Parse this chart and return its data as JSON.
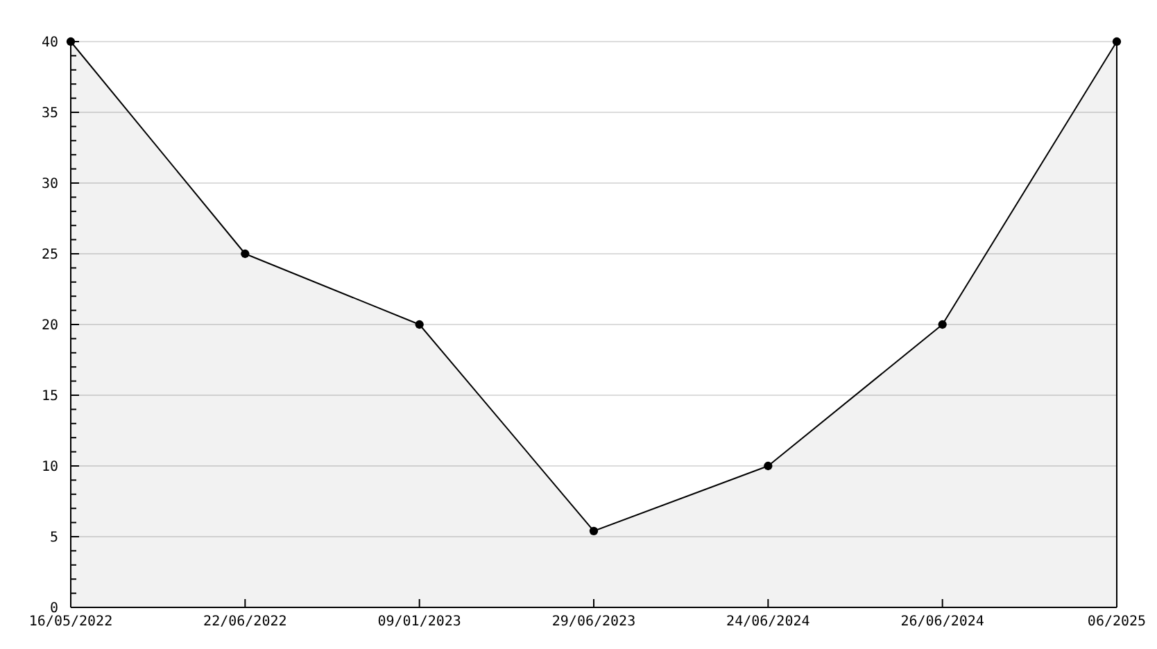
{
  "chart_data": {
    "type": "area",
    "categories": [
      "16/05/2022",
      "22/06/2022",
      "09/01/2023",
      "29/06/2023",
      "24/06/2024",
      "26/06/2024",
      "06/2025"
    ],
    "series": [
      {
        "color": "#000000",
        "values": [
          40,
          25,
          20,
          5.4,
          10,
          20,
          40
        ]
      }
    ],
    "ylim": [
      0,
      40
    ],
    "yticks": [
      0,
      {
        "value": 1,
        "label": null
      },
      {
        "value": 2,
        "label": null
      },
      {
        "value": 3,
        "label": null
      },
      {
        "value": 4,
        "label": null
      },
      5,
      {
        "value": 6,
        "label": null
      },
      {
        "value": 7,
        "label": null
      },
      {
        "value": 8,
        "label": null
      },
      {
        "value": 9,
        "label": null
      },
      10,
      {
        "value": 11,
        "label": null
      },
      {
        "value": 12,
        "label": null
      },
      {
        "value": 13,
        "label": null
      },
      {
        "value": 14,
        "label": null
      },
      15,
      {
        "value": 16,
        "label": null
      },
      {
        "value": 17,
        "label": null
      },
      {
        "value": 18,
        "label": null
      },
      {
        "value": 19,
        "label": null
      },
      20,
      {
        "value": 21,
        "label": null
      },
      {
        "value": 22,
        "label": null
      },
      {
        "value": 23,
        "label": null
      },
      {
        "value": 24,
        "label": null
      },
      25,
      {
        "value": 26,
        "label": null
      },
      {
        "value": 27,
        "label": null
      },
      {
        "value": 28,
        "label": null
      },
      {
        "value": 29,
        "label": null
      },
      30,
      {
        "value": 31,
        "label": null
      },
      {
        "value": 32,
        "label": null
      },
      {
        "value": 33,
        "label": null
      },
      {
        "value": 34,
        "label": null
      },
      35,
      {
        "value": 36,
        "label": null
      },
      {
        "value": 37,
        "label": null
      },
      {
        "value": 38,
        "label": null
      },
      {
        "value": 39,
        "label": null
      },
      40
    ],
    "grid": "y",
    "marker": "circle",
    "line_style": "solid"
  }
}
